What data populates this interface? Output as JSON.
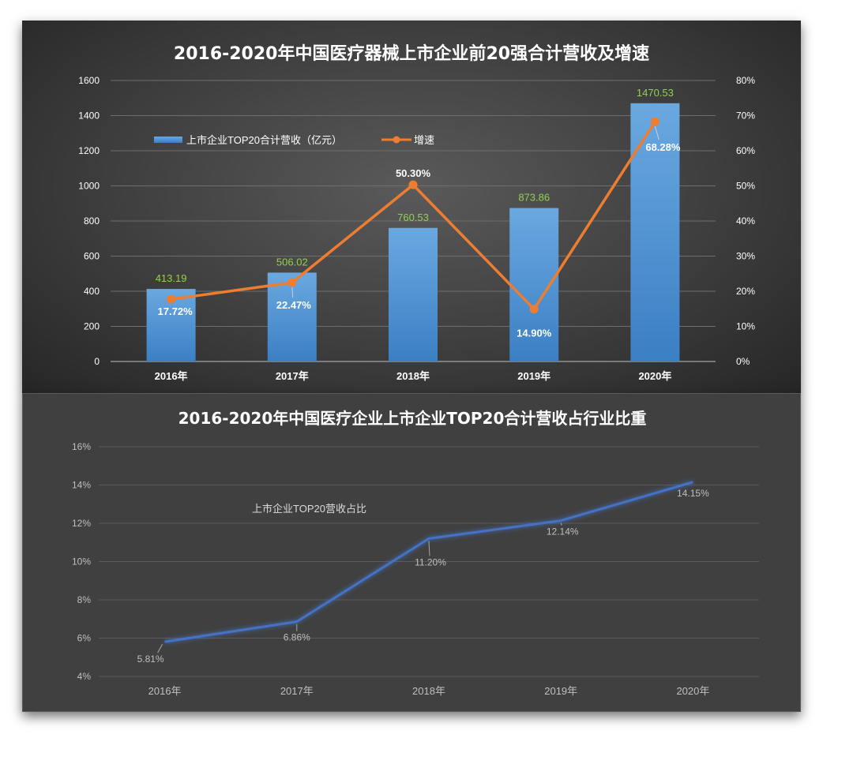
{
  "chart_data": [
    {
      "type": "bar",
      "title": "2016-2020年中国医疗器械上市企业前20强合计营收及增速",
      "categories": [
        "2016年",
        "2017年",
        "2018年",
        "2019年",
        "2020年"
      ],
      "yticks_left": [
        "0",
        "200",
        "400",
        "600",
        "800",
        "1000",
        "1200",
        "1400",
        "1600"
      ],
      "yticks_right": [
        "0%",
        "10%",
        "20%",
        "30%",
        "40%",
        "50%",
        "60%",
        "70%",
        "80%"
      ],
      "ylim_left": [
        0,
        1600
      ],
      "ylim_right": [
        0,
        80
      ],
      "grid": true,
      "legend_position": "top-left",
      "series": [
        {
          "name": "上市企业TOP20合计营收（亿元）",
          "kind": "bar",
          "axis": "left",
          "color": "#5b9bd5",
          "values": [
            413.19,
            506.02,
            760.53,
            873.86,
            1470.53
          ],
          "labels": [
            "413.19",
            "506.02",
            "760.53",
            "873.86",
            "1470.53"
          ],
          "label_color": "#92d050"
        },
        {
          "name": "增速",
          "kind": "line",
          "axis": "right",
          "color": "#ed7d31",
          "values": [
            17.72,
            22.47,
            50.3,
            14.9,
            68.28
          ],
          "labels": [
            "17.72%",
            "22.47%",
            "50.30%",
            "14.90%",
            "68.28%"
          ]
        }
      ]
    },
    {
      "type": "line",
      "title": "2016-2020年中国医疗企业上市企业TOP20合计营收占行业比重",
      "categories": [
        "2016年",
        "2017年",
        "2018年",
        "2019年",
        "2020年"
      ],
      "yticks": [
        "4%",
        "6%",
        "8%",
        "10%",
        "12%",
        "14%",
        "16%"
      ],
      "ylim": [
        4,
        16
      ],
      "grid": true,
      "legend_position": "top-left",
      "series": [
        {
          "name": "上市企业TOP20营收占比",
          "color": "#4472c4",
          "values": [
            5.81,
            6.86,
            11.2,
            12.14,
            14.15
          ],
          "labels": [
            "5.81%",
            "6.86%",
            "11.20%",
            "12.14%",
            "14.15%"
          ]
        }
      ]
    }
  ]
}
